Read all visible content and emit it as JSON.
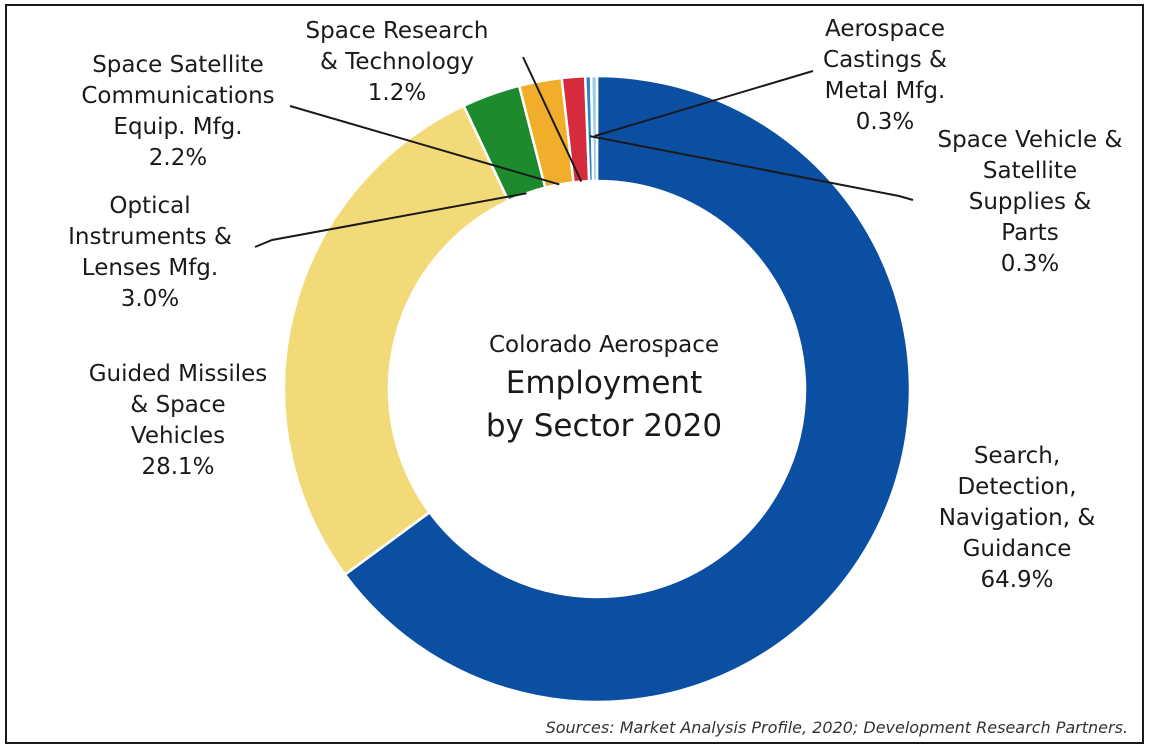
{
  "chart_data": {
    "type": "pie",
    "donut": true,
    "title_lines": [
      "Colorado Aerospace",
      "Employment",
      "by Sector 2020"
    ],
    "source": "Sources: Market Analysis Profile, 2020; Development Research Partners.",
    "slices": [
      {
        "label_lines": [
          "Search,",
          "Detection,",
          "Navigation, &",
          "Guidance"
        ],
        "pct_text": "64.9%",
        "value": 64.9,
        "color": "#0B4FA3"
      },
      {
        "label_lines": [
          "Guided Missiles",
          "& Space",
          "Vehicles"
        ],
        "pct_text": "28.1%",
        "value": 28.1,
        "color": "#F3DA78"
      },
      {
        "label_lines": [
          "Optical",
          "Instruments &",
          "Lenses Mfg."
        ],
        "pct_text": "3.0%",
        "value": 3.0,
        "color": "#1E8A2E"
      },
      {
        "label_lines": [
          "Space Satellite",
          "Communications",
          "Equip. Mfg."
        ],
        "pct_text": "2.2%",
        "value": 2.2,
        "color": "#F0AE2A"
      },
      {
        "label_lines": [
          "Space Research",
          "& Technology"
        ],
        "pct_text": "1.2%",
        "value": 1.2,
        "color": "#D52B3C"
      },
      {
        "label_lines": [
          "Space Vehicle &",
          "Satellite",
          "Supplies &",
          "Parts"
        ],
        "pct_text": "0.3%",
        "value": 0.3,
        "color": "#2C84C8"
      },
      {
        "label_lines": [
          "Aerospace",
          "Castings &",
          "Metal Mfg."
        ],
        "pct_text": "0.3%",
        "value": 0.3,
        "color": "#9ECBEA"
      }
    ]
  }
}
